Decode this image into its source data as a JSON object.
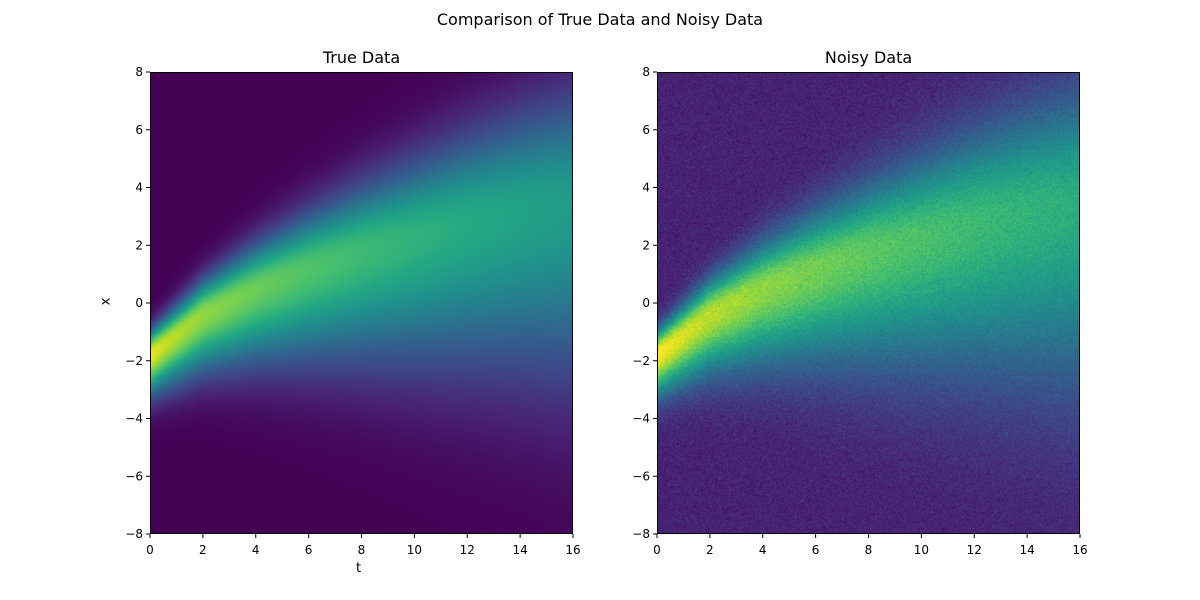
{
  "figure": {
    "suptitle": "Comparison of True Data and Noisy Data"
  },
  "chart_data": [
    {
      "type": "heatmap",
      "title": "True Data",
      "xlabel": "t",
      "ylabel": "x",
      "xlim": [
        0,
        16
      ],
      "ylim": [
        -8,
        8
      ],
      "xticks": [
        0,
        2,
        4,
        6,
        8,
        10,
        12,
        14,
        16
      ],
      "yticks": [
        -8,
        -6,
        -4,
        -2,
        0,
        2,
        4,
        6,
        8
      ],
      "colormap": "viridis",
      "noise": false,
      "ridge": {
        "t": [
          0,
          2,
          4,
          6,
          8,
          10,
          12,
          14,
          16
        ],
        "x": [
          -1.8,
          -0.4,
          0.5,
          1.2,
          1.8,
          2.3,
          2.8,
          3.2,
          3.5
        ]
      },
      "peak_value_range": [
        0.55,
        1.0
      ]
    },
    {
      "type": "heatmap",
      "title": "Noisy Data",
      "xlabel": "",
      "ylabel": "",
      "xlim": [
        0,
        16
      ],
      "ylim": [
        -8,
        8
      ],
      "xticks": [
        0,
        2,
        4,
        6,
        8,
        10,
        12,
        14,
        16
      ],
      "yticks": [
        -8,
        -6,
        -4,
        -2,
        0,
        2,
        4,
        6,
        8
      ],
      "colormap": "viridis",
      "noise": true,
      "ridge": {
        "t": [
          0,
          2,
          4,
          6,
          8,
          10,
          12,
          14,
          16
        ],
        "x": [
          -1.8,
          -0.4,
          0.5,
          1.2,
          1.8,
          2.3,
          2.8,
          3.2,
          3.5
        ]
      },
      "peak_value_range": [
        0.55,
        1.0
      ]
    }
  ]
}
